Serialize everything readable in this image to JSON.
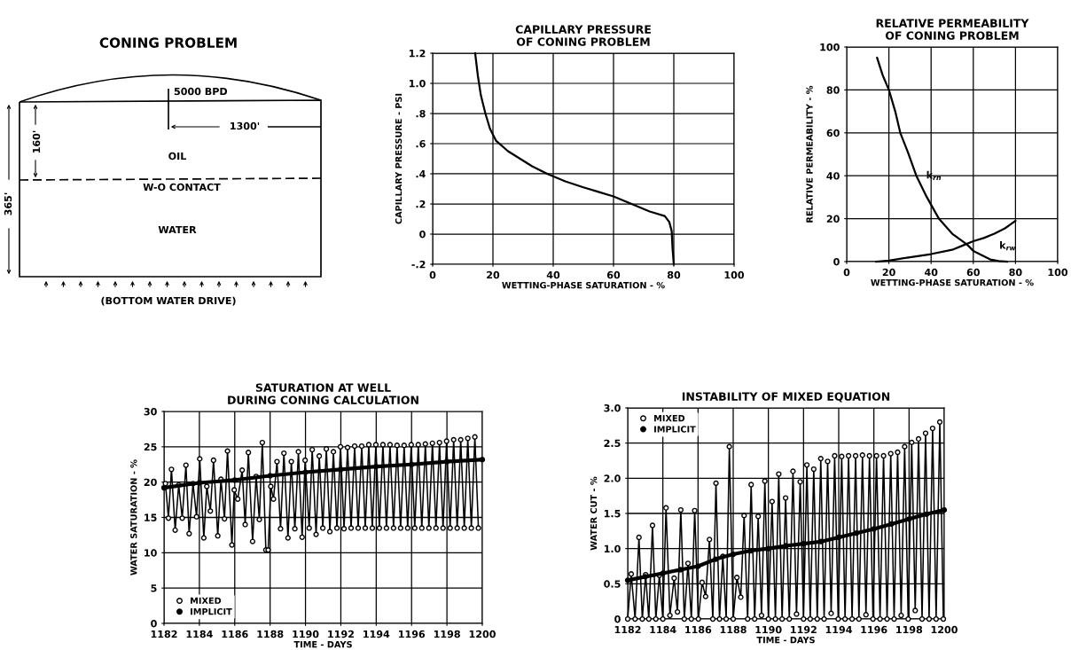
{
  "chart_data": [
    {
      "type": "other",
      "title": "CONING PROBLEM",
      "annotations": [
        "5000 BPD",
        "1300'",
        "160'",
        "OIL",
        "W-O CONTACT",
        "WATER",
        "365'",
        "(BOTTOM WATER DRIVE)"
      ]
    },
    {
      "type": "line",
      "title": "CAPILLARY PRESSURE\nOF CONING PROBLEM",
      "xlabel": "WETTING-PHASE SATURATION - %",
      "ylabel": "CAPILLARY PRESSURE - PSI",
      "xlim": [
        0,
        100
      ],
      "ylim": [
        -0.2,
        1.2
      ],
      "xticks": [
        0,
        20,
        40,
        60,
        80,
        100
      ],
      "yticks": [
        {
          "value": -0.2,
          "label": "-.2"
        },
        0,
        {
          "value": 0.2,
          "label": ".2"
        },
        {
          "value": 0.4,
          "label": ".4"
        },
        {
          "value": 0.6,
          "label": ".6"
        },
        {
          "value": 0.8,
          "label": ".8"
        },
        {
          "value": 1.0,
          "label": "1.0"
        },
        1.2
      ],
      "grid": true,
      "series": [
        {
          "color": "#000000",
          "x": [
            14.1,
            15,
            16,
            17.5,
            19,
            21,
            25,
            29,
            33,
            38,
            44,
            50,
            55,
            60,
            66,
            72,
            77,
            78.5,
            79.3,
            79.6,
            80
          ],
          "values": [
            1.2,
            1.05,
            0.92,
            0.8,
            0.7,
            0.62,
            0.55,
            0.5,
            0.45,
            0.4,
            0.35,
            0.31,
            0.28,
            0.25,
            0.2,
            0.15,
            0.12,
            0.08,
            0.02,
            -0.1,
            -0.2
          ]
        }
      ]
    },
    {
      "type": "line",
      "title": "RELATIVE PERMEABILITY\nOF CONING PROBLEM",
      "xlabel": "WETTING-PHASE SATURATION - %",
      "ylabel": "RELATIVE PERMEABILITY - %",
      "xlim": [
        0,
        100
      ],
      "ylim": [
        0,
        100
      ],
      "xticks": [
        0,
        20,
        40,
        60,
        80,
        100
      ],
      "yticks": [
        0,
        20,
        40,
        60,
        80,
        100
      ],
      "grid": true,
      "series": [
        {
          "name": "k$_{rn}$",
          "color": "#000000",
          "x": [
            14.4,
            17,
            20,
            23,
            25.4,
            29,
            33,
            38,
            43.7,
            50,
            57,
            60,
            64,
            68,
            72,
            76
          ],
          "values": [
            95,
            87,
            80,
            70,
            60,
            51,
            40,
            30,
            20,
            13,
            8,
            5,
            3,
            1,
            0.3,
            0
          ]
        },
        {
          "name": "k$_{rw}$",
          "color": "#000000",
          "x": [
            14,
            20,
            30,
            40,
            50,
            55,
            60,
            65,
            70,
            75,
            80
          ],
          "values": [
            0,
            0.5,
            2,
            3.5,
            5.5,
            7.5,
            9.5,
            11,
            13,
            15.5,
            19
          ]
        }
      ]
    },
    {
      "type": "line",
      "title": "SATURATION AT WELL\nDURING CONING CALCULATION",
      "xlabel": "TIME - DAYS",
      "ylabel": "WATER SATURATION - %",
      "xlim": [
        1182,
        1200
      ],
      "ylim": [
        0,
        30
      ],
      "xticks": [
        1182,
        1184,
        1186,
        1188,
        1190,
        1192,
        1194,
        1196,
        1198,
        1200
      ],
      "yticks": [
        0,
        5,
        10,
        15,
        20,
        25,
        30
      ],
      "grid": true,
      "legend": "bottom left",
      "marker": "circle",
      "series": [
        {
          "name": "MIXED",
          "color": "#000000",
          "x": [
            1182.08,
            1182.25,
            1182.42,
            1182.63,
            1182.83,
            1183.03,
            1183.24,
            1183.42,
            1183.64,
            1183.84,
            1184.02,
            1184.25,
            1184.42,
            1184.62,
            1184.8,
            1185.04,
            1185.22,
            1185.42,
            1185.59,
            1185.84,
            1185.97,
            1186.17,
            1186.42,
            1186.59,
            1186.77,
            1187.01,
            1187.21,
            1187.39,
            1187.56,
            1187.76,
            1187.89,
            1188.04,
            1188.19,
            1188.39,
            1188.59,
            1188.78,
            1189.01,
            1189.2,
            1189.4,
            1189.6,
            1189.81,
            1189.98,
            1190.21,
            1190.38,
            1190.6,
            1190.78,
            1190.98,
            1191.18,
            1191.38,
            1191.58,
            1191.78,
            1191.98,
            1192.18,
            1192.38,
            1192.58,
            1192.78,
            1192.98,
            1193.18,
            1193.38,
            1193.58,
            1193.78,
            1193.98,
            1194.18,
            1194.38,
            1194.58,
            1194.78,
            1194.98,
            1195.18,
            1195.38,
            1195.58,
            1195.78,
            1195.98,
            1196.18,
            1196.38,
            1196.58,
            1196.78,
            1196.98,
            1197.18,
            1197.38,
            1197.58,
            1197.78,
            1197.98,
            1198.18,
            1198.38,
            1198.58,
            1198.78,
            1198.98,
            1199.18,
            1199.38,
            1199.58,
            1199.78
          ],
          "values": [
            19.8,
            14.9,
            21.8,
            13.2,
            19.6,
            14.9,
            22.4,
            12.7,
            19.8,
            15.1,
            23.3,
            12.1,
            19.4,
            15.9,
            23.1,
            12.4,
            20.4,
            14.8,
            24.4,
            11.1,
            18.9,
            17.6,
            21.7,
            14.0,
            24.2,
            11.6,
            20.8,
            14.7,
            25.6,
            10.4,
            10.4,
            19.4,
            17.6,
            22.9,
            13.4,
            24.1,
            12.1,
            22.9,
            13.4,
            24.3,
            12.2,
            23.1,
            13.5,
            24.6,
            12.6,
            23.7,
            13.5,
            24.7,
            13.0,
            24.3,
            13.5,
            25.0,
            13.4,
            24.9,
            13.5,
            25.1,
            13.5,
            25.1,
            13.5,
            25.3,
            13.5,
            25.3,
            13.5,
            25.3,
            13.5,
            25.3,
            13.5,
            25.2,
            13.5,
            25.2,
            13.5,
            25.3,
            13.5,
            25.3,
            13.5,
            25.4,
            13.5,
            25.5,
            13.5,
            25.6,
            13.5,
            25.8,
            13.5,
            26.0,
            13.5,
            26.0,
            13.5,
            26.2,
            13.5,
            26.4,
            13.5
          ]
        },
        {
          "name": "IMPLICIT",
          "color": "#000000",
          "x": [
            1182,
            1184,
            1186,
            1188,
            1190,
            1192,
            1194,
            1196,
            1198,
            1200
          ],
          "values": [
            19.2,
            19.9,
            20.3,
            20.9,
            21.4,
            21.8,
            22.2,
            22.5,
            22.9,
            23.2
          ]
        }
      ]
    },
    {
      "type": "line",
      "title": "INSTABILITY OF MIXED EQUATION",
      "xlabel": "TIME - DAYS",
      "ylabel": "WATER CUT - %",
      "xlim": [
        1182,
        1200
      ],
      "ylim": [
        0,
        3.0
      ],
      "xticks": [
        1182,
        1184,
        1186,
        1188,
        1190,
        1192,
        1194,
        1196,
        1198,
        1200
      ],
      "yticks": [
        0,
        {
          "value": 0.5,
          "label": "0.5"
        },
        {
          "value": 1.0,
          "label": "1.0"
        },
        {
          "value": 1.5,
          "label": "1.5"
        },
        {
          "value": 2.0,
          "label": "2.0"
        },
        {
          "value": 2.5,
          "label": "2.5"
        },
        {
          "value": 3.0,
          "label": "3.0"
        }
      ],
      "grid": true,
      "legend": "top left",
      "marker": "circle",
      "series": [
        {
          "name": "MIXED",
          "color": "#000000",
          "x": [
            1182.0,
            1182.2,
            1182.42,
            1182.64,
            1182.83,
            1183.02,
            1183.2,
            1183.41,
            1183.6,
            1183.8,
            1184.0,
            1184.18,
            1184.4,
            1184.64,
            1184.83,
            1185.02,
            1185.22,
            1185.43,
            1185.62,
            1185.81,
            1186.02,
            1186.23,
            1186.43,
            1186.65,
            1186.84,
            1187.02,
            1187.22,
            1187.41,
            1187.6,
            1187.78,
            1188.0,
            1188.21,
            1188.43,
            1188.62,
            1188.82,
            1189.02,
            1189.22,
            1189.42,
            1189.61,
            1189.8,
            1190.0,
            1190.21,
            1190.4,
            1190.59,
            1190.78,
            1190.98,
            1191.19,
            1191.4,
            1191.6,
            1191.81,
            1192.0,
            1192.19,
            1192.38,
            1192.58,
            1192.78,
            1192.98,
            1193.17,
            1193.37,
            1193.57,
            1193.77,
            1193.97,
            1194.17,
            1194.36,
            1194.56,
            1194.76,
            1194.96,
            1195.15,
            1195.35,
            1195.55,
            1195.75,
            1195.95,
            1196.15,
            1196.35,
            1196.55,
            1196.75,
            1196.96,
            1197.15,
            1197.35,
            1197.55,
            1197.75,
            1197.95,
            1198.15,
            1198.35,
            1198.54,
            1198.74,
            1198.94,
            1199.14,
            1199.34,
            1199.54,
            1199.75,
            1199.95
          ],
          "values": [
            0,
            0.64,
            0,
            1.16,
            0,
            0.63,
            0,
            1.33,
            0,
            0.62,
            0,
            1.58,
            0.05,
            0.58,
            0.1,
            1.55,
            0,
            0.79,
            0,
            1.54,
            0,
            0.52,
            0.32,
            1.13,
            0,
            1.93,
            0,
            0.89,
            0,
            2.45,
            0,
            0.59,
            0.31,
            1.47,
            0,
            1.91,
            0,
            1.46,
            0.05,
            1.96,
            0,
            1.67,
            0,
            2.06,
            0,
            1.72,
            0,
            2.1,
            0.07,
            1.95,
            0,
            2.19,
            0,
            2.13,
            0,
            2.28,
            0,
            2.24,
            0.08,
            2.32,
            0,
            2.31,
            0,
            2.32,
            0,
            2.32,
            0,
            2.33,
            0.06,
            2.32,
            0,
            2.32,
            0,
            2.32,
            0,
            2.35,
            0,
            2.37,
            0.05,
            2.45,
            0,
            2.51,
            0.12,
            2.56,
            0,
            2.64,
            0,
            2.71,
            0,
            2.8,
            0
          ]
        },
        {
          "name": "IMPLICIT",
          "color": "#000000",
          "x": [
            1182,
            1183,
            1184,
            1185,
            1186,
            1187,
            1188,
            1189,
            1190,
            1191,
            1192,
            1193,
            1194,
            1195,
            1196,
            1197,
            1198,
            1199,
            1200
          ],
          "values": [
            0.55,
            0.6,
            0.65,
            0.7,
            0.75,
            0.85,
            0.92,
            0.97,
            1.0,
            1.04,
            1.07,
            1.1,
            1.16,
            1.22,
            1.28,
            1.35,
            1.42,
            1.49,
            1.55
          ]
        }
      ]
    }
  ]
}
